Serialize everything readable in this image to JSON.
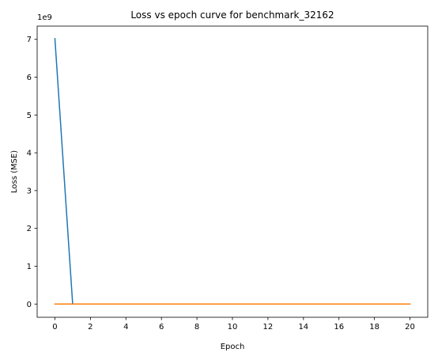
{
  "chart_data": {
    "type": "line",
    "title": "Loss vs epoch curve for benchmark_32162",
    "xlabel": "Epoch",
    "ylabel": "Loss (MSE)",
    "y_offset_label": "1e9",
    "xlim": [
      -1,
      21
    ],
    "ylim": [
      -0.35,
      7.35
    ],
    "x_ticks": [
      0,
      2,
      4,
      6,
      8,
      10,
      12,
      14,
      16,
      18,
      20
    ],
    "y_ticks": [
      0,
      1,
      2,
      3,
      4,
      5,
      6,
      7
    ],
    "grid": false,
    "colors": {
      "series_1": "#1f77b4",
      "series_2": "#ff7f0e"
    },
    "series": [
      {
        "x": [
          0,
          1,
          2,
          3,
          4,
          5,
          6,
          7,
          8,
          9,
          10,
          11,
          12,
          13,
          14,
          15,
          16,
          17,
          18,
          19,
          20
        ],
        "values": [
          7.02,
          0.0,
          0.0,
          0.0,
          0.0,
          0.0,
          0.0,
          0.0,
          0.0,
          0.0,
          0.0,
          0.0,
          0.0,
          0.0,
          0.0,
          0.0,
          0.0,
          0.0,
          0.0,
          0.0,
          0.0
        ]
      },
      {
        "x": [
          0,
          1,
          2,
          3,
          4,
          5,
          6,
          7,
          8,
          9,
          10,
          11,
          12,
          13,
          14,
          15,
          16,
          17,
          18,
          19,
          20
        ],
        "values": [
          0.0,
          0.0,
          0.0,
          0.0,
          0.0,
          0.0,
          0.0,
          0.0,
          0.0,
          0.0,
          0.0,
          0.0,
          0.0,
          0.0,
          0.0,
          0.0,
          0.0,
          0.0,
          0.0,
          0.0,
          0.0
        ]
      }
    ]
  }
}
